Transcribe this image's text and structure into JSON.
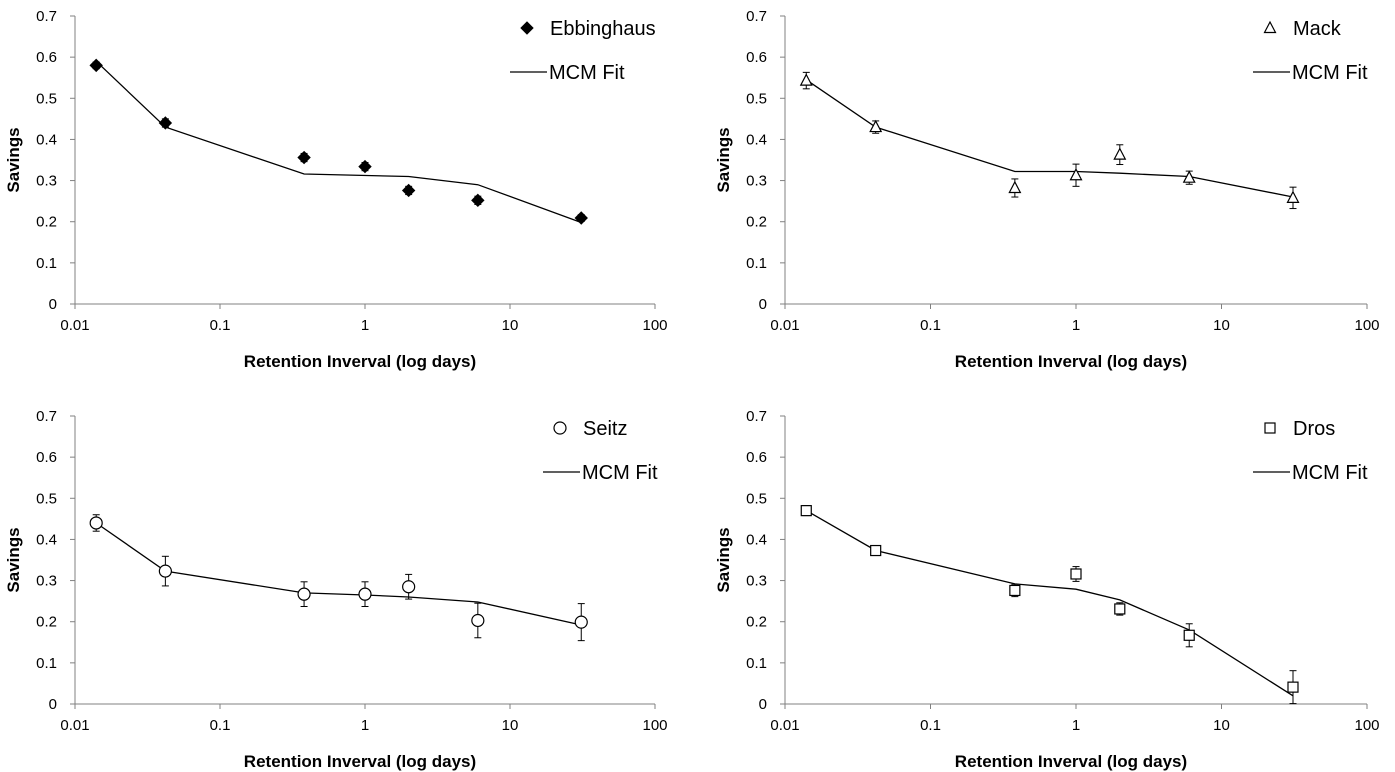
{
  "chart_data": [
    {
      "type": "scatter",
      "xlabel": "Retention Inverval (log days)",
      "ylabel": "Savings",
      "x_scale": "log",
      "xlim": [
        0.01,
        100
      ],
      "ylim": [
        0,
        0.7
      ],
      "x_ticks": [
        "0.01",
        "0.1",
        "1",
        "10",
        "100"
      ],
      "y_ticks": [
        "0",
        "0.1",
        "0.2",
        "0.3",
        "0.4",
        "0.5",
        "0.6",
        "0.7"
      ],
      "grid": false,
      "legend_position": "top-right",
      "data_series": {
        "name": "Ebbinghaus",
        "marker": "diamond-filled",
        "x": [
          0.014,
          0.042,
          0.38,
          1,
          2,
          6,
          31
        ],
        "y": [
          0.58,
          0.44,
          0.356,
          0.334,
          0.276,
          0.252,
          0.209
        ],
        "err": [
          0.008,
          0.01,
          0.01,
          0.01,
          0.01,
          0.01,
          0.008
        ]
      },
      "fit_series": {
        "name": "MCM Fit",
        "x": [
          0.014,
          0.042,
          0.38,
          2,
          6,
          31
        ],
        "y": [
          0.59,
          0.43,
          0.316,
          0.31,
          0.29,
          0.198
        ]
      }
    },
    {
      "type": "scatter",
      "xlabel": "Retention Inverval (log days)",
      "ylabel": "Savings",
      "x_scale": "log",
      "xlim": [
        0.01,
        100
      ],
      "ylim": [
        0,
        0.7
      ],
      "x_ticks": [
        "0.01",
        "0.1",
        "1",
        "10",
        "100"
      ],
      "y_ticks": [
        "0",
        "0.1",
        "0.2",
        "0.3",
        "0.4",
        "0.5",
        "0.6",
        "0.7"
      ],
      "grid": false,
      "legend_position": "top-right",
      "data_series": {
        "name": "Mack",
        "marker": "triangle-open",
        "x": [
          0.014,
          0.042,
          0.38,
          1,
          2,
          6,
          31
        ],
        "y": [
          0.543,
          0.43,
          0.282,
          0.313,
          0.363,
          0.307,
          0.258
        ],
        "err": [
          0.02,
          0.015,
          0.022,
          0.027,
          0.024,
          0.016,
          0.026
        ]
      },
      "fit_series": {
        "name": "MCM Fit",
        "x": [
          0.014,
          0.042,
          0.38,
          1,
          2,
          6,
          31
        ],
        "y": [
          0.545,
          0.43,
          0.322,
          0.322,
          0.318,
          0.31,
          0.26
        ]
      }
    },
    {
      "type": "scatter",
      "xlabel": "Retention Inverval (log days)",
      "ylabel": "Savings",
      "x_scale": "log",
      "xlim": [
        0.01,
        100
      ],
      "ylim": [
        0,
        0.7
      ],
      "x_ticks": [
        "0.01",
        "0.1",
        "1",
        "10",
        "100"
      ],
      "y_ticks": [
        "0",
        "0.1",
        "0.2",
        "0.3",
        "0.4",
        "0.5",
        "0.6",
        "0.7"
      ],
      "grid": false,
      "legend_position": "top-right",
      "data_series": {
        "name": "Seitz",
        "marker": "circle-open",
        "x": [
          0.014,
          0.042,
          0.38,
          1,
          2,
          6,
          31
        ],
        "y": [
          0.44,
          0.323,
          0.267,
          0.267,
          0.285,
          0.203,
          0.199
        ],
        "err": [
          0.02,
          0.036,
          0.03,
          0.03,
          0.03,
          0.042,
          0.045
        ]
      },
      "fit_series": {
        "name": "MCM Fit",
        "x": [
          0.014,
          0.042,
          0.38,
          1,
          2,
          6,
          31
        ],
        "y": [
          0.44,
          0.323,
          0.27,
          0.265,
          0.26,
          0.248,
          0.192
        ]
      }
    },
    {
      "type": "scatter",
      "xlabel": "Retention Inverval (log days)",
      "ylabel": "Savings",
      "x_scale": "log",
      "xlim": [
        0.01,
        100
      ],
      "ylim": [
        0,
        0.7
      ],
      "x_ticks": [
        "0.01",
        "0.1",
        "1",
        "10",
        "100"
      ],
      "y_ticks": [
        "0",
        "0.1",
        "0.2",
        "0.3",
        "0.4",
        "0.5",
        "0.6",
        "0.7"
      ],
      "grid": false,
      "legend_position": "top-right",
      "data_series": {
        "name": "Dros",
        "marker": "square-open",
        "x": [
          0.014,
          0.042,
          0.38,
          1,
          2,
          6,
          31
        ],
        "y": [
          0.47,
          0.373,
          0.276,
          0.316,
          0.231,
          0.167,
          0.041
        ],
        "err": [
          0.012,
          0.012,
          0.015,
          0.018,
          0.015,
          0.028,
          0.04
        ]
      },
      "fit_series": {
        "name": "MCM Fit",
        "x": [
          0.014,
          0.042,
          0.38,
          1,
          2,
          6,
          31
        ],
        "y": [
          0.47,
          0.373,
          0.292,
          0.279,
          0.253,
          0.18,
          0.02
        ]
      }
    }
  ]
}
